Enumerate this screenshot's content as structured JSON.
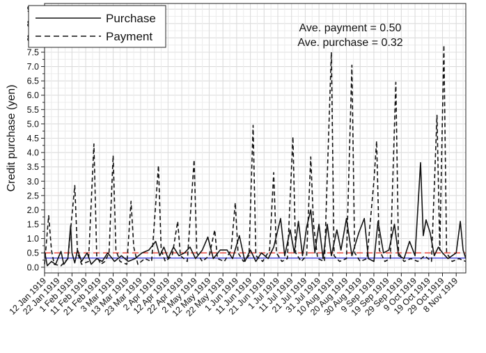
{
  "chart_data": {
    "type": "line",
    "xlabel": "",
    "ylabel": "Credit purchase (yen)",
    "ylim": [
      -0.2,
      9.2
    ],
    "yticks": [
      0.0,
      0.5,
      1.0,
      1.5,
      2.0,
      2.5,
      3.0,
      3.5,
      4.0,
      4.5,
      5.0,
      5.5,
      6.0,
      6.5,
      7.0,
      7.5,
      8.0,
      8.5,
      9.0
    ],
    "ytick_labels": [
      "0.0",
      "0.5",
      "1.0",
      "1.5",
      "2.0",
      "2.5",
      "3.0",
      "3.5",
      "4.0",
      "4.5",
      "5.0",
      "5.5",
      "6.0",
      "6.5",
      "7.0",
      "7.5",
      "8.0",
      "8.5",
      "9.0"
    ],
    "x_start": "12 Jan 1919",
    "x_end": "15 Nov 1919",
    "x_tick_labels": [
      "12 Jan 1919",
      "22 Jan 1919",
      "1 Feb 1919",
      "11 Feb 1919",
      "21 Feb 1919",
      "3 Mar 1919",
      "13 Mar 1919",
      "23 Mar 1919",
      "2 Apr 1919",
      "12 Apr 1919",
      "22 Apr 1919",
      "2 May 1919",
      "12 May 1919",
      "22 May 1919",
      "1 Jun 1919",
      "11 Jun 1919",
      "21 Jun 1919",
      "1 Jul 1919",
      "11 Jul 1919",
      "21 Jul 1919",
      "31 Jul 1919",
      "10 Aug 1919",
      "20 Aug 1919",
      "30 Aug 1919",
      "9 Sep 1919",
      "19 Sep 1919",
      "29 Sep 1919",
      "9 Oct 1919",
      "19 Oct 1919",
      "29 Oct 1919",
      "8 Nov 1919"
    ],
    "grid": true,
    "legend_position": "top-left",
    "annotations": [
      "Ave. payment = 0.50",
      "Ave. purchase = 0.32"
    ],
    "reference_lines": [
      {
        "y": 0.5,
        "color": "#e8382c",
        "style": "dashed"
      },
      {
        "y": 0.32,
        "color": "#2b2bd6",
        "style": "solid"
      }
    ],
    "series": [
      {
        "name": "Purchase",
        "style": "solid",
        "points": [
          [
            "12 Jan 1919",
            0.55
          ],
          [
            "14 Jan 1919",
            0.05
          ],
          [
            "17 Jan 1919",
            0.2
          ],
          [
            "20 Jan 1919",
            0.1
          ],
          [
            "24 Jan 1919",
            0.55
          ],
          [
            "26 Jan 1919",
            0.1
          ],
          [
            "29 Jan 1919",
            0.3
          ],
          [
            "31 Jan 1919",
            1.45
          ],
          [
            "1 Feb 1919",
            0.5
          ],
          [
            "3 Feb 1919",
            0.15
          ],
          [
            "5 Feb 1919",
            0.6
          ],
          [
            "8 Feb 1919",
            0.2
          ],
          [
            "12 Feb 1919",
            0.5
          ],
          [
            "15 Feb 1919",
            0.1
          ],
          [
            "19 Feb 1919",
            0.3
          ],
          [
            "23 Feb 1919",
            0.2
          ],
          [
            "27 Feb 1919",
            0.5
          ],
          [
            "4 Mar 1919",
            0.2
          ],
          [
            "9 Mar 1919",
            0.4
          ],
          [
            "14 Mar 1919",
            0.2
          ],
          [
            "19 Mar 1919",
            0.3
          ],
          [
            "24 Mar 1919",
            0.5
          ],
          [
            "29 Mar 1919",
            0.6
          ],
          [
            "3 Apr 1919",
            0.9
          ],
          [
            "6 Apr 1919",
            0.4
          ],
          [
            "9 Apr 1919",
            0.7
          ],
          [
            "12 Apr 1919",
            0.3
          ],
          [
            "16 Apr 1919",
            0.7
          ],
          [
            "20 Apr 1919",
            0.4
          ],
          [
            "24 Apr 1919",
            0.5
          ],
          [
            "28 Apr 1919",
            0.7
          ],
          [
            "2 May 1919",
            0.3
          ],
          [
            "7 May 1919",
            0.6
          ],
          [
            "11 May 1919",
            1.05
          ],
          [
            "15 May 1919",
            0.3
          ],
          [
            "20 May 1919",
            0.6
          ],
          [
            "25 May 1919",
            0.6
          ],
          [
            "29 May 1919",
            0.3
          ],
          [
            "3 Jun 1919",
            1.1
          ],
          [
            "7 Jun 1919",
            0.2
          ],
          [
            "11 Jun 1919",
            0.6
          ],
          [
            "15 Jun 1919",
            0.2
          ],
          [
            "19 Jun 1919",
            0.5
          ],
          [
            "24 Jun 1919",
            0.3
          ],
          [
            "28 Jun 1919",
            0.7
          ],
          [
            "3 Jul 1919",
            1.7
          ],
          [
            "6 Jul 1919",
            0.4
          ],
          [
            "10 Jul 1919",
            1.3
          ],
          [
            "13 Jul 1919",
            0.5
          ],
          [
            "16 Jul 1919",
            1.6
          ],
          [
            "19 Jul 1919",
            0.4
          ],
          [
            "22 Jul 1919",
            1.4
          ],
          [
            "25 Jul 1919",
            2.0
          ],
          [
            "28 Jul 1919",
            0.5
          ],
          [
            "31 Jul 1919",
            1.5
          ],
          [
            "3 Aug 1919",
            0.3
          ],
          [
            "6 Aug 1919",
            1.5
          ],
          [
            "9 Aug 1919",
            0.4
          ],
          [
            "13 Aug 1919",
            1.3
          ],
          [
            "16 Aug 1919",
            0.6
          ],
          [
            "20 Aug 1919",
            1.7
          ],
          [
            "24 Aug 1919",
            0.4
          ],
          [
            "29 Aug 1919",
            1.2
          ],
          [
            "2 Sep 1919",
            1.7
          ],
          [
            "5 Sep 1919",
            0.3
          ],
          [
            "9 Sep 1919",
            0.2
          ],
          [
            "12 Sep 1919",
            1.6
          ],
          [
            "16 Sep 1919",
            0.5
          ],
          [
            "20 Sep 1919",
            0.6
          ],
          [
            "24 Sep 1919",
            1.5
          ],
          [
            "27 Sep 1919",
            0.4
          ],
          [
            "1 Oct 1919",
            0.3
          ],
          [
            "5 Oct 1919",
            0.9
          ],
          [
            "9 Oct 1919",
            0.4
          ],
          [
            "13 Oct 1919",
            3.65
          ],
          [
            "15 Oct 1919",
            1.1
          ],
          [
            "17 Oct 1919",
            1.65
          ],
          [
            "20 Oct 1919",
            1.2
          ],
          [
            "23 Oct 1919",
            0.4
          ],
          [
            "26 Oct 1919",
            0.7
          ],
          [
            "29 Oct 1919",
            0.5
          ],
          [
            "2 Nov 1919",
            0.3
          ],
          [
            "5 Nov 1919",
            0.4
          ],
          [
            "8 Nov 1919",
            0.5
          ],
          [
            "11 Nov 1919",
            1.6
          ],
          [
            "13 Nov 1919",
            0.6
          ],
          [
            "15 Nov 1919",
            0.3
          ]
        ]
      },
      {
        "name": "Payment",
        "style": "dashed",
        "points": [
          [
            "12 Jan 1919",
            0.1
          ],
          [
            "15 Jan 1919",
            1.8
          ],
          [
            "17 Jan 1919",
            0.6
          ],
          [
            "19 Jan 1919",
            0.1
          ],
          [
            "24 Jan 1919",
            0.05
          ],
          [
            "29 Jan 1919",
            0.3
          ],
          [
            "3 Feb 1919",
            2.85
          ],
          [
            "5 Feb 1919",
            0.5
          ],
          [
            "8 Feb 1919",
            0.1
          ],
          [
            "13 Feb 1919",
            0.2
          ],
          [
            "17 Feb 1919",
            4.3
          ],
          [
            "19 Feb 1919",
            0.4
          ],
          [
            "22 Feb 1919",
            0.1
          ],
          [
            "25 Feb 1919",
            0.2
          ],
          [
            "28 Feb 1919",
            0.5
          ],
          [
            "3 Mar 1919",
            3.9
          ],
          [
            "5 Mar 1919",
            0.6
          ],
          [
            "8 Mar 1919",
            0.2
          ],
          [
            "13 Mar 1919",
            0.1
          ],
          [
            "16 Mar 1919",
            2.3
          ],
          [
            "18 Mar 1919",
            0.7
          ],
          [
            "21 Mar 1919",
            0.1
          ],
          [
            "26 Mar 1919",
            0.3
          ],
          [
            "31 Mar 1919",
            0.2
          ],
          [
            "5 Apr 1919",
            3.55
          ],
          [
            "7 Apr 1919",
            0.6
          ],
          [
            "10 Apr 1919",
            0.2
          ],
          [
            "15 Apr 1919",
            0.4
          ],
          [
            "19 Apr 1919",
            1.6
          ],
          [
            "21 Apr 1919",
            0.4
          ],
          [
            "26 Apr 1919",
            0.2
          ],
          [
            "1 May 1919",
            3.75
          ],
          [
            "3 May 1919",
            0.5
          ],
          [
            "7 May 1919",
            0.2
          ],
          [
            "12 May 1919",
            0.4
          ],
          [
            "16 May 1919",
            1.3
          ],
          [
            "18 May 1919",
            0.3
          ],
          [
            "23 May 1919",
            0.2
          ],
          [
            "28 May 1919",
            0.6
          ],
          [
            "31 May 1919",
            2.25
          ],
          [
            "2 Jun 1919",
            0.5
          ],
          [
            "6 Jun 1919",
            0.2
          ],
          [
            "10 Jun 1919",
            0.4
          ],
          [
            "13 Jun 1919",
            4.95
          ],
          [
            "15 Jun 1919",
            0.4
          ],
          [
            "20 Jun 1919",
            0.2
          ],
          [
            "25 Jun 1919",
            0.6
          ],
          [
            "28 Jun 1919",
            3.3
          ],
          [
            "30 Jun 1919",
            0.5
          ],
          [
            "4 Jul 1919",
            0.2
          ],
          [
            "8 Jul 1919",
            0.3
          ],
          [
            "12 Jul 1919",
            4.55
          ],
          [
            "14 Jul 1919",
            0.5
          ],
          [
            "18 Jul 1919",
            0.2
          ],
          [
            "22 Jul 1919",
            0.4
          ],
          [
            "25 Jul 1919",
            3.85
          ],
          [
            "27 Jul 1919",
            1.5
          ],
          [
            "30 Jul 1919",
            0.3
          ],
          [
            "4 Aug 1919",
            0.2
          ],
          [
            "9 Aug 1919",
            7.5
          ],
          [
            "11 Aug 1919",
            0.4
          ],
          [
            "15 Aug 1919",
            0.2
          ],
          [
            "20 Aug 1919",
            0.3
          ],
          [
            "24 Aug 1919",
            7.05
          ],
          [
            "26 Aug 1919",
            0.5
          ],
          [
            "30 Aug 1919",
            0.2
          ],
          [
            "4 Sep 1919",
            0.3
          ],
          [
            "9 Sep 1919",
            3.0
          ],
          [
            "11 Sep 1919",
            4.4
          ],
          [
            "13 Sep 1919",
            0.6
          ],
          [
            "17 Sep 1919",
            0.2
          ],
          [
            "21 Sep 1919",
            0.3
          ],
          [
            "25 Sep 1919",
            6.45
          ],
          [
            "27 Sep 1919",
            0.5
          ],
          [
            "1 Oct 1919",
            0.2
          ],
          [
            "6 Oct 1919",
            0.3
          ],
          [
            "11 Oct 1919",
            0.2
          ],
          [
            "16 Oct 1919",
            0.4
          ],
          [
            "21 Oct 1919",
            0.2
          ],
          [
            "25 Oct 1919",
            5.3
          ],
          [
            "27 Oct 1919",
            0.6
          ],
          [
            "30 Oct 1919",
            7.75
          ],
          [
            "1 Nov 1919",
            0.5
          ],
          [
            "5 Nov 1919",
            0.2
          ],
          [
            "10 Nov 1919",
            0.3
          ],
          [
            "15 Nov 1919",
            0.2
          ]
        ]
      }
    ]
  }
}
